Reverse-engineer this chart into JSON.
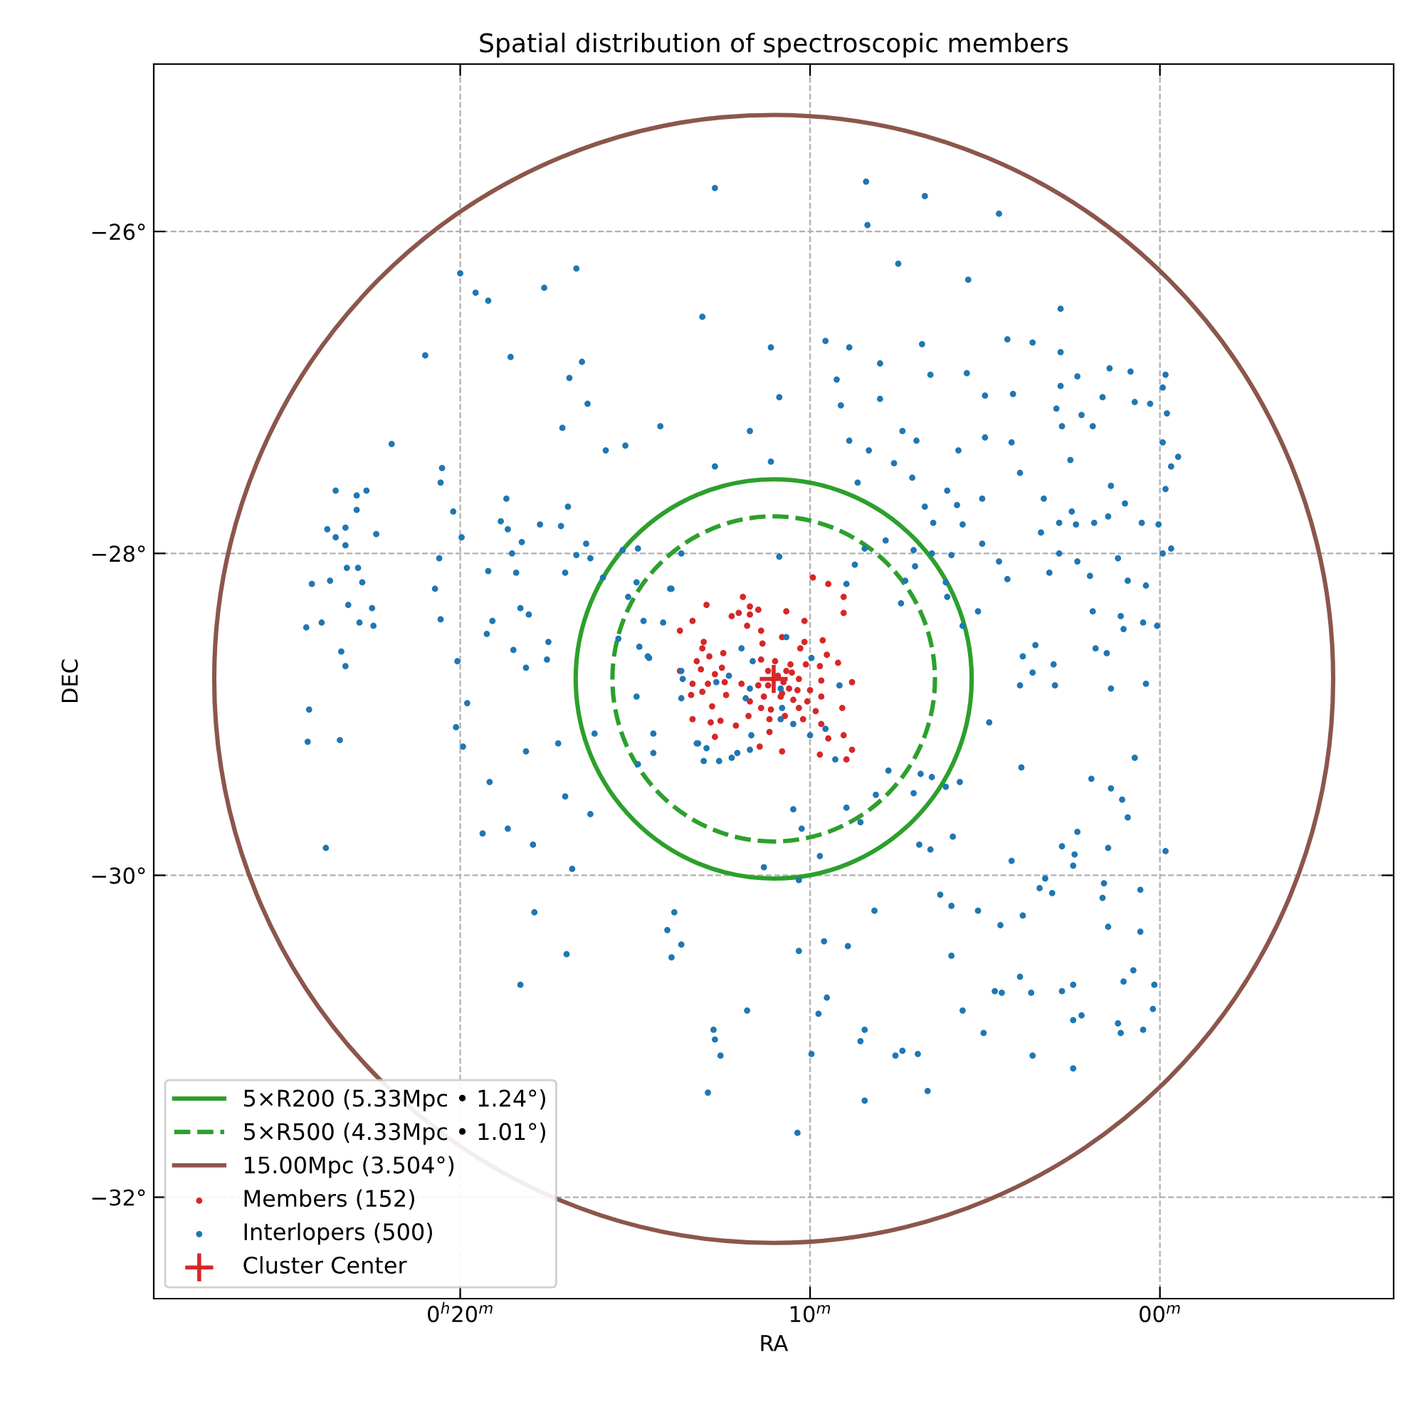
{
  "chart_data": {
    "type": "scatter",
    "title": "Spatial distribution of spectroscopic members",
    "xlabel": "RA",
    "ylabel": "DEC",
    "xlim": [
      28.76,
      -6.68
    ],
    "ylim": [
      -32.63,
      -24.96
    ],
    "xticks": [
      {
        "value": 20,
        "label": "0$^{h}$20$^{m}$"
      },
      {
        "value": 10,
        "label": "10$^{m}$"
      },
      {
        "value": 0,
        "label": "00$^{m}$"
      }
    ],
    "yticks": [
      {
        "value": -32,
        "label": "−32°"
      },
      {
        "value": -30,
        "label": "−30°"
      },
      {
        "value": -28,
        "label": "−28°"
      },
      {
        "value": -26,
        "label": "−26°"
      }
    ],
    "grid": true,
    "legend": "bottom left",
    "annotations": [
      "5×R200 (5.33Mpc • 1.24°)",
      "5×R500 (4.33Mpc • 1.01°)",
      "15.00Mpc (3.504°)"
    ],
    "series": [
      {
        "type": "scatter",
        "name": "Members (152)",
        "color": "#d62728",
        "marker": "circle",
        "x": [
          9.92,
          9.48,
          9.04,
          9.04,
          12.96,
          11.92,
          11.72,
          11.48,
          12.24,
          12.04,
          13.36,
          11.72,
          10.68,
          10.16,
          13.72,
          11.8,
          11.4,
          13.04,
          13.08,
          12.48,
          11.36,
          10.8,
          10.16,
          10.28,
          9.64,
          9.52,
          13.24,
          12.88,
          12.52,
          11.4,
          11.0,
          10.56,
          10.12,
          9.72,
          9.2,
          13.72,
          13.12,
          12.72,
          11.96,
          11.2,
          11.04,
          10.68,
          10.32,
          9.68,
          8.8,
          13.36,
          12.92,
          12.44,
          11.48,
          11.2,
          10.6,
          10.0,
          13.4,
          13.08,
          12.4,
          11.32,
          10.8,
          9.68,
          11.72,
          10.48,
          10.08,
          12.8,
          11.4,
          11.12,
          10.32,
          9.08,
          9.84,
          13.36,
          12.84,
          12.56,
          12.12,
          11.76,
          11.16,
          10.72,
          10.2,
          9.68,
          11.16,
          12.72,
          11.44,
          9.48,
          9.04,
          9.72,
          8.96,
          8.8,
          10.8,
          10.92,
          10.76,
          10.52,
          10.84,
          10.36
        ],
        "values": [
          -28.15,
          -28.19,
          -28.27,
          -28.37,
          -28.32,
          -28.27,
          -28.33,
          -28.35,
          -28.39,
          -28.37,
          -28.42,
          -28.38,
          -28.36,
          -28.42,
          -28.48,
          -28.45,
          -28.48,
          -28.55,
          -28.59,
          -28.62,
          -28.56,
          -28.52,
          -28.55,
          -28.59,
          -28.54,
          -28.63,
          -28.67,
          -28.64,
          -28.71,
          -28.66,
          -28.67,
          -28.69,
          -28.69,
          -28.7,
          -28.68,
          -28.73,
          -28.72,
          -28.75,
          -28.81,
          -28.73,
          -28.78,
          -28.73,
          -28.78,
          -28.79,
          -28.8,
          -28.81,
          -28.81,
          -28.8,
          -28.82,
          -28.82,
          -28.84,
          -28.85,
          -28.88,
          -28.86,
          -28.88,
          -28.89,
          -28.87,
          -28.89,
          -28.92,
          -28.91,
          -28.92,
          -28.95,
          -28.96,
          -28.97,
          -28.96,
          -28.96,
          -28.98,
          -29.03,
          -29.05,
          -29.04,
          -29.07,
          -29.01,
          -29.03,
          -29.01,
          -29.03,
          -29.06,
          -29.11,
          -29.14,
          -29.2,
          -29.15,
          -29.13,
          -29.25,
          -29.28,
          -29.22,
          -29.23,
          -28.76,
          -28.8,
          -28.74,
          -28.89,
          -28.85
        ]
      },
      {
        "type": "scatter",
        "name": "Interlopers (500)",
        "color": "#1f77b4",
        "marker": "circle",
        "x": [
          12.72,
          20.0,
          19.56,
          19.2,
          17.6,
          16.68,
          13.08,
          11.12,
          21.0,
          18.56,
          16.52,
          16.88,
          16.36,
          17.08,
          14.28,
          11.72,
          21.96,
          15.84,
          15.28,
          12.72,
          11.12,
          20.52,
          20.56,
          20.2,
          23.56,
          22.96,
          22.68,
          22.96,
          23.8,
          23.28,
          23.56,
          23.28,
          22.4,
          18.68,
          18.84,
          18.64,
          17.72,
          16.92,
          17.12,
          18.24,
          19.96,
          20.6,
          18.52,
          19.2,
          18.4,
          16.4,
          16.68,
          16.28,
          17.0,
          15.92,
          15.36,
          14.92,
          23.24,
          22.92,
          24.24,
          23.72,
          22.8,
          20.72,
          23.2,
          22.52,
          24.4,
          23.96,
          22.88,
          22.48,
          20.56,
          18.28,
          18.04,
          19.08,
          19.24,
          23.4,
          23.28,
          20.08,
          18.48,
          18.12,
          17.48,
          17.52,
          14.96,
          15.2,
          14.0,
          14.76,
          14.2,
          14.6,
          13.68,
          15.48,
          8.4,
          6.72,
          8.36,
          4.6,
          7.48,
          5.48,
          2.84,
          9.56,
          8.88,
          8.0,
          6.8,
          9.24,
          10.88,
          9.12,
          8.0,
          6.56,
          5.52,
          4.36,
          3.64,
          2.84,
          2.36,
          2.84,
          5.0,
          4.2,
          2.96,
          2.24,
          1.64,
          1.44,
          0.84,
          -0.16,
          -0.08,
          2.8,
          1.92,
          0.72,
          0.28,
          -0.2,
          8.88,
          8.32,
          7.36,
          6.96,
          7.6,
          7.08,
          8.64,
          5.76,
          5.0,
          4.24,
          4.0,
          2.56,
          1.4,
          -0.08,
          -0.52,
          -0.32,
          6.08,
          5.8,
          5.08,
          6.72,
          6.48,
          5.64,
          3.32,
          2.52,
          2.88,
          2.4,
          1.88,
          1.48,
          1.0,
          0.52,
          0.04,
          -0.16,
          3.4,
          2.88,
          2.36,
          1.2,
          0.92,
          0.4,
          -0.08,
          -0.32,
          4.6,
          4.36,
          3.16,
          2.0,
          5.08,
          5.96,
          7.84,
          8.44,
          7.04,
          7.0,
          6.52,
          8.96,
          7.28,
          6.12,
          6.08,
          5.2,
          5.64,
          7.4,
          1.92,
          1.12,
          1.04,
          0.48,
          0.08,
          3.56,
          3.92,
          3.64,
          3.04,
          4.0,
          3.0,
          1.84,
          1.52,
          1.4,
          0.4,
          10.88,
          24.32,
          24.36,
          23.44,
          23.84,
          19.8,
          20.12,
          19.92,
          18.12,
          17.2,
          19.16,
          17.0,
          16.28,
          19.36,
          18.64,
          17.92,
          16.8,
          16.16,
          14.48,
          14.48,
          14.92,
          13.2,
          12.96,
          13.04,
          12.6,
          12.24,
          12.08,
          11.68,
          11.72,
          11.32,
          17.88,
          13.88,
          14.08,
          13.68,
          13.96,
          16.96,
          18.28,
          11.8,
          12.76,
          12.72,
          12.56,
          12.92,
          4.88,
          3.96,
          1.96,
          1.4,
          1.08,
          0.92,
          0.72,
          7.76,
          6.84,
          6.52,
          8.12,
          7.04,
          6.12,
          5.72,
          8.96,
          8.56,
          10.48,
          10.24,
          9.72,
          10.32,
          5.92,
          6.88,
          6.56,
          4.24,
          2.8,
          2.36,
          2.44,
          2.48,
          1.48,
          -0.16,
          3.28,
          3.44,
          3.08,
          1.6,
          1.64,
          0.56,
          6.28,
          5.96,
          5.2,
          4.56,
          3.92,
          1.48,
          0.56,
          8.16,
          9.6,
          8.92,
          10.32,
          5.96,
          4.0,
          4.72,
          4.52,
          3.68,
          2.8,
          2.48,
          0.76,
          1.04,
          0.16,
          9.52,
          9.76,
          5.64,
          2.48,
          2.24,
          0.2,
          1.2,
          1.12,
          0.48,
          5.04,
          8.44,
          8.56,
          9.96,
          7.56,
          7.36,
          6.92,
          3.64,
          2.48,
          8.44,
          6.64,
          10.36,
          13.96,
          14.88,
          14.64,
          13.68,
          13.64,
          13.68,
          14.96,
          11.96,
          11.64,
          12.68,
          12.32,
          11.72,
          11.84,
          10.84,
          10.68,
          9.96,
          9.16,
          10.8,
          10.84,
          10.48,
          10.0,
          13.24,
          9.28,
          9.56,
          8.72
        ],
        "values": [
          -25.73,
          -26.26,
          -26.38,
          -26.43,
          -26.35,
          -26.23,
          -26.53,
          -26.72,
          -26.77,
          -26.78,
          -26.81,
          -26.91,
          -27.07,
          -27.22,
          -27.21,
          -27.24,
          -27.32,
          -27.36,
          -27.33,
          -27.46,
          -27.43,
          -27.47,
          -27.56,
          -27.74,
          -27.61,
          -27.64,
          -27.61,
          -27.73,
          -27.85,
          -27.84,
          -27.9,
          -27.95,
          -27.88,
          -27.66,
          -27.8,
          -27.85,
          -27.82,
          -27.71,
          -27.83,
          -27.93,
          -27.9,
          -28.03,
          -28.0,
          -28.11,
          -28.12,
          -27.94,
          -28.01,
          -28.03,
          -28.12,
          -28.15,
          -27.98,
          -27.97,
          -28.09,
          -28.09,
          -28.19,
          -28.17,
          -28.18,
          -28.22,
          -28.32,
          -28.34,
          -28.46,
          -28.43,
          -28.43,
          -28.45,
          -28.41,
          -28.34,
          -28.38,
          -28.42,
          -28.5,
          -28.61,
          -28.7,
          -28.67,
          -28.6,
          -28.71,
          -28.55,
          -28.66,
          -28.18,
          -28.27,
          -28.22,
          -28.42,
          -28.43,
          -28.65,
          -28.0,
          -28.53,
          -25.69,
          -25.78,
          -25.96,
          -25.89,
          -26.2,
          -26.3,
          -26.48,
          -26.68,
          -26.72,
          -26.82,
          -26.7,
          -26.92,
          -27.03,
          -27.08,
          -27.04,
          -26.89,
          -26.88,
          -26.67,
          -26.69,
          -26.75,
          -26.9,
          -26.96,
          -27.02,
          -27.01,
          -27.1,
          -27.14,
          -27.03,
          -26.85,
          -26.87,
          -26.89,
          -26.97,
          -27.21,
          -27.21,
          -27.06,
          -27.07,
          -27.13,
          -27.3,
          -27.36,
          -27.24,
          -27.3,
          -27.44,
          -27.53,
          -27.56,
          -27.36,
          -27.28,
          -27.31,
          -27.5,
          -27.42,
          -27.58,
          -27.31,
          -27.4,
          -27.46,
          -27.61,
          -27.7,
          -27.66,
          -27.71,
          -27.81,
          -27.82,
          -27.66,
          -27.74,
          -27.81,
          -27.82,
          -27.81,
          -27.77,
          -27.69,
          -27.81,
          -27.82,
          -27.6,
          -27.87,
          -28.0,
          -28.05,
          -28.03,
          -28.17,
          -28.2,
          -28.0,
          -27.97,
          -28.05,
          -28.16,
          -28.12,
          -28.14,
          -27.94,
          -28.01,
          -27.92,
          -27.97,
          -27.98,
          -28.08,
          -28.0,
          -28.19,
          -28.17,
          -28.18,
          -28.27,
          -28.36,
          -28.45,
          -28.31,
          -28.36,
          -28.39,
          -28.47,
          -28.43,
          -28.45,
          -28.57,
          -28.64,
          -28.74,
          -28.69,
          -28.82,
          -28.82,
          -28.59,
          -28.62,
          -28.84,
          -28.81,
          -28.02,
          -28.97,
          -29.17,
          -29.16,
          -29.83,
          -28.93,
          -29.08,
          -29.2,
          -29.23,
          -29.18,
          -29.42,
          -29.51,
          -29.62,
          -29.74,
          -29.71,
          -29.81,
          -29.96,
          -29.12,
          -29.12,
          -29.24,
          -29.31,
          -29.18,
          -29.21,
          -29.29,
          -29.29,
          -29.27,
          -29.24,
          -29.13,
          -29.22,
          -29.95,
          -30.23,
          -30.23,
          -30.34,
          -30.43,
          -30.51,
          -30.49,
          -30.68,
          -30.84,
          -30.96,
          -31.02,
          -31.12,
          -31.35,
          -29.05,
          -29.33,
          -29.4,
          -29.46,
          -29.53,
          -29.64,
          -29.27,
          -29.35,
          -29.37,
          -29.39,
          -29.5,
          -29.49,
          -29.45,
          -29.42,
          -29.58,
          -29.67,
          -29.59,
          -29.71,
          -29.88,
          -30.03,
          -29.76,
          -29.81,
          -29.84,
          -29.91,
          -29.82,
          -29.73,
          -29.87,
          -29.94,
          -29.83,
          -29.85,
          -30.02,
          -30.08,
          -30.11,
          -30.05,
          -30.14,
          -30.09,
          -30.12,
          -30.19,
          -30.22,
          -30.31,
          -30.25,
          -30.32,
          -30.35,
          -30.22,
          -30.41,
          -30.44,
          -30.47,
          -30.5,
          -30.63,
          -30.72,
          -30.73,
          -30.73,
          -30.72,
          -30.68,
          -30.59,
          -30.66,
          -30.68,
          -30.76,
          -30.86,
          -30.84,
          -30.9,
          -30.87,
          -30.83,
          -30.92,
          -30.98,
          -30.96,
          -30.98,
          -30.96,
          -31.03,
          -31.11,
          -31.12,
          -31.09,
          -31.11,
          -31.12,
          -31.2,
          -31.4,
          -31.34,
          -31.6,
          -28.22,
          -28.58,
          -28.64,
          -28.73,
          -28.78,
          -28.9,
          -28.89,
          -28.59,
          -28.67,
          -28.8,
          -28.76,
          -28.84,
          -28.9,
          -28.84,
          -28.52,
          -28.65,
          -28.82,
          -28.96,
          -29.03,
          -29.06,
          -29.13,
          -29.18,
          -29.28,
          -29.09,
          -28.07
        ]
      },
      {
        "type": "scatter",
        "name": "Cluster Center",
        "color": "#d62728",
        "marker": "cross",
        "x": [
          11.04
        ],
        "values": [
          -28.78
        ]
      }
    ]
  }
}
